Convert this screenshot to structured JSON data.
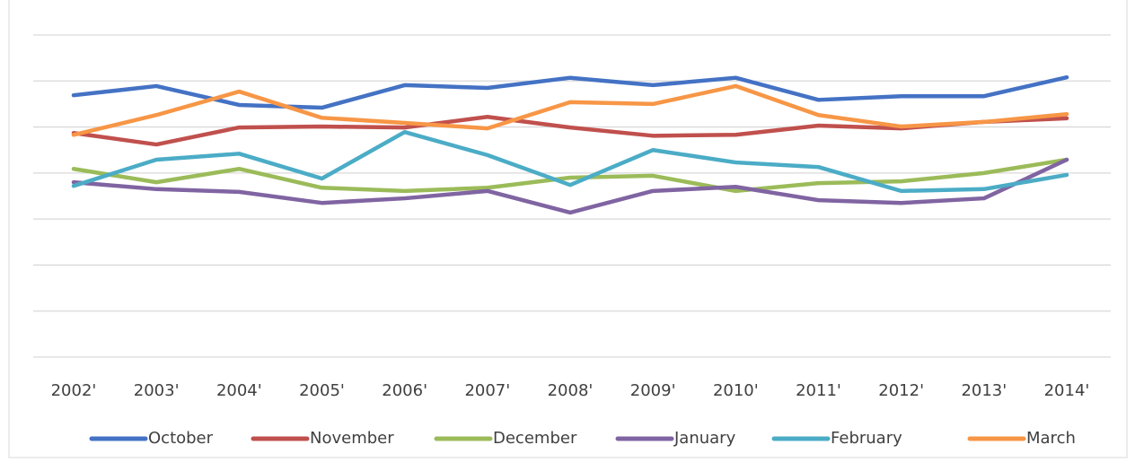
{
  "chart_data": {
    "type": "line",
    "categories": [
      "2002'",
      "2003'",
      "2004'",
      "2005'",
      "2006'",
      "2007'",
      "2008'",
      "2009'",
      "2010'",
      "2011'",
      "2012'",
      "2013'",
      "2014'"
    ],
    "series": [
      {
        "name": "October",
        "color": "#4472c4",
        "values": [
          5.69,
          5.89,
          5.48,
          5.42,
          5.91,
          5.85,
          6.07,
          5.91,
          6.07,
          5.59,
          5.67,
          5.67,
          6.08
        ]
      },
      {
        "name": "November",
        "color": "#c0504d",
        "values": [
          4.87,
          4.62,
          4.99,
          5.01,
          4.99,
          5.22,
          4.99,
          4.81,
          4.83,
          5.03,
          4.97,
          5.11,
          5.19
        ]
      },
      {
        "name": "December",
        "color": "#9bbb59",
        "values": [
          4.09,
          3.8,
          4.09,
          3.68,
          3.61,
          3.68,
          3.9,
          3.94,
          3.61,
          3.78,
          3.82,
          4.0,
          4.29
        ]
      },
      {
        "name": "January",
        "color": "#8064a2",
        "values": [
          3.8,
          3.65,
          3.59,
          3.35,
          3.45,
          3.61,
          3.14,
          3.61,
          3.7,
          3.41,
          3.35,
          3.45,
          4.29
        ]
      },
      {
        "name": "February",
        "color": "#4bacc6",
        "values": [
          3.72,
          4.29,
          4.42,
          3.88,
          4.89,
          4.39,
          3.74,
          4.5,
          4.23,
          4.13,
          3.61,
          3.65,
          3.96
        ]
      },
      {
        "name": "March",
        "color": "#f79646",
        "values": [
          4.83,
          5.26,
          5.77,
          5.2,
          5.09,
          4.97,
          5.54,
          5.5,
          5.89,
          5.26,
          5.01,
          5.11,
          5.28
        ]
      }
    ],
    "ylim": [
      0,
      7
    ],
    "yticks": [
      0,
      1,
      2,
      3,
      4,
      5,
      6,
      7
    ],
    "grid": true,
    "legend": "bottom"
  }
}
